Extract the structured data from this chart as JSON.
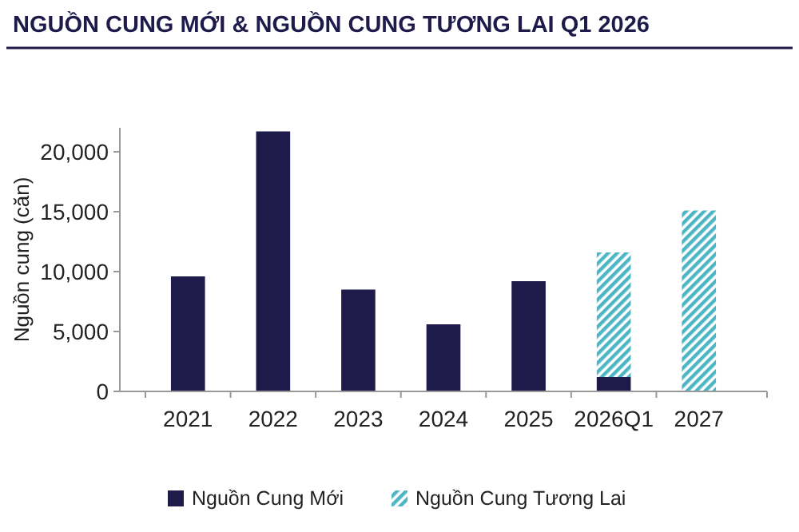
{
  "chart_data": {
    "type": "bar",
    "title": "NGUỒN CUNG MỚI & NGUỒN CUNG TƯƠNG LAI Q1 2026",
    "ylabel": "Nguồn cung (căn)",
    "categories": [
      "2021",
      "2022",
      "2023",
      "2024",
      "2025",
      "2026Q1",
      "2027"
    ],
    "stacked": true,
    "series": [
      {
        "name": "Nguồn Cung Mới",
        "color": "#1e1b4b",
        "values": [
          9600,
          21700,
          8500,
          5600,
          9200,
          1200,
          null
        ]
      },
      {
        "name": "Nguồn Cung Tương Lai",
        "color": "#4db6c4",
        "values": [
          null,
          null,
          null,
          null,
          null,
          10400,
          15100
        ]
      }
    ],
    "ylim": [
      0,
      22000
    ],
    "yticks": [
      {
        "value": 0,
        "label": "0"
      },
      {
        "value": 5000,
        "label": "5,000"
      },
      {
        "value": 10000,
        "label": "10,000"
      },
      {
        "value": 15000,
        "label": "15,000"
      },
      {
        "value": 20000,
        "label": "20,000"
      }
    ],
    "grid": false,
    "legend": "bottom"
  }
}
